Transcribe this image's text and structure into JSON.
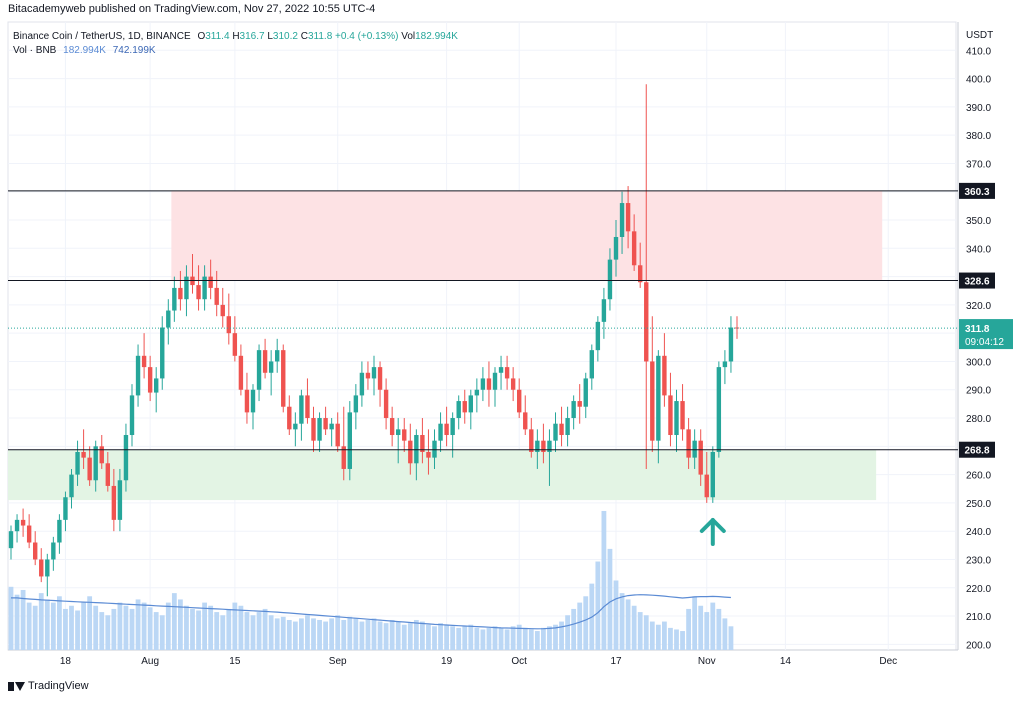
{
  "header": {
    "text": "Bitacademyweb published on TradingView.com, Nov 27, 2022 10:55 UTC-4"
  },
  "legend": {
    "symbol": "Binance Coin / TetherUS, 1D, BINANCE",
    "o_label": "O",
    "o": "311.4",
    "h_label": "H",
    "h": "316.7",
    "l_label": "L",
    "l": "310.2",
    "c_label": "C",
    "c": "311.8",
    "change": "+0.4 (+0.13%)",
    "vol_label": "Vol",
    "vol": "182.994K",
    "vol_series": "Vol · BNB",
    "vol_val1": "182.994K",
    "vol_val2": "742.199K"
  },
  "footer": {
    "brand": "TradingView"
  },
  "colors": {
    "up": "#26a69a",
    "down": "#ef5350",
    "resistance_zone": "#fde2e4",
    "support_zone": "#e3f4e4",
    "volume": "#bbd7f5",
    "volume_ma": "#5b8bd4",
    "arrow": "#26a69a"
  },
  "chart_data": {
    "type": "candlestick",
    "title": "Binance Coin / TetherUS, 1D, BINANCE",
    "y_axis_label": "USDT",
    "ylim": [
      198,
      420
    ],
    "y_ticks": [
      200,
      210,
      220,
      230,
      240,
      250,
      260,
      270,
      280,
      290,
      300,
      310,
      320,
      330,
      340,
      350,
      360,
      370,
      380,
      390,
      400,
      410
    ],
    "x_ticks": [
      {
        "label": "18",
        "index": 9
      },
      {
        "label": "Aug",
        "index": 23
      },
      {
        "label": "15",
        "index": 37
      },
      {
        "label": "Sep",
        "index": 54
      },
      {
        "label": "19",
        "index": 72
      },
      {
        "label": "Oct",
        "index": 84
      },
      {
        "label": "17",
        "index": 100
      },
      {
        "label": "Nov",
        "index": 115
      },
      {
        "label": "14",
        "index": 128
      },
      {
        "label": "Dec",
        "index": 145
      }
    ],
    "horizontal_levels": [
      {
        "value": 360.3,
        "label": "360.3"
      },
      {
        "value": 328.6,
        "label": "328.6"
      },
      {
        "value": 268.8,
        "label": "268.8"
      }
    ],
    "zones": [
      {
        "name": "resistance",
        "from": 328.6,
        "to": 360.3,
        "start_index": 27,
        "end_index": 144
      },
      {
        "name": "support",
        "from": 251,
        "to": 268.8,
        "start_index": 0,
        "end_index": 143
      }
    ],
    "last_price": {
      "value": 311.8,
      "label": "311.8",
      "countdown": "09:04:12"
    },
    "candles": [
      [
        234,
        242,
        230,
        240
      ],
      [
        240,
        246,
        236,
        244
      ],
      [
        244,
        248,
        238,
        242
      ],
      [
        242,
        246,
        234,
        236
      ],
      [
        236,
        240,
        228,
        230
      ],
      [
        230,
        234,
        222,
        224
      ],
      [
        224,
        232,
        217,
        230
      ],
      [
        230,
        238,
        226,
        236
      ],
      [
        236,
        246,
        232,
        244
      ],
      [
        244,
        254,
        240,
        252
      ],
      [
        252,
        262,
        248,
        260
      ],
      [
        260,
        272,
        256,
        268
      ],
      [
        268,
        276,
        262,
        266
      ],
      [
        266,
        270,
        256,
        258
      ],
      [
        258,
        272,
        254,
        270
      ],
      [
        270,
        274,
        262,
        264
      ],
      [
        264,
        268,
        254,
        256
      ],
      [
        256,
        262,
        240,
        244
      ],
      [
        244,
        262,
        240,
        258
      ],
      [
        258,
        278,
        254,
        274
      ],
      [
        274,
        292,
        270,
        288
      ],
      [
        288,
        306,
        284,
        302
      ],
      [
        302,
        310,
        294,
        298
      ],
      [
        298,
        302,
        286,
        289
      ],
      [
        289,
        298,
        282,
        294
      ],
      [
        294,
        316,
        290,
        312
      ],
      [
        312,
        322,
        306,
        318
      ],
      [
        318,
        330,
        314,
        326
      ],
      [
        326,
        332,
        318,
        322
      ],
      [
        322,
        334,
        316,
        330
      ],
      [
        330,
        338,
        324,
        327
      ],
      [
        327,
        334,
        318,
        322
      ],
      [
        322,
        334,
        318,
        330
      ],
      [
        330,
        336,
        322,
        326
      ],
      [
        326,
        332,
        316,
        320
      ],
      [
        320,
        326,
        312,
        316
      ],
      [
        316,
        324,
        306,
        310
      ],
      [
        310,
        316,
        300,
        302
      ],
      [
        302,
        306,
        288,
        290
      ],
      [
        290,
        296,
        278,
        282
      ],
      [
        282,
        292,
        276,
        290
      ],
      [
        290,
        306,
        286,
        304
      ],
      [
        304,
        308,
        294,
        296
      ],
      [
        296,
        304,
        288,
        300
      ],
      [
        300,
        308,
        296,
        304
      ],
      [
        304,
        306,
        282,
        284
      ],
      [
        284,
        288,
        274,
        276
      ],
      [
        276,
        282,
        270,
        278
      ],
      [
        278,
        290,
        272,
        288
      ],
      [
        288,
        294,
        278,
        280
      ],
      [
        280,
        284,
        268,
        272
      ],
      [
        272,
        282,
        268,
        280
      ],
      [
        280,
        284,
        274,
        276
      ],
      [
        276,
        280,
        270,
        278
      ],
      [
        278,
        282,
        268,
        270
      ],
      [
        270,
        284,
        258,
        262
      ],
      [
        262,
        286,
        258,
        282
      ],
      [
        282,
        292,
        276,
        288
      ],
      [
        288,
        300,
        284,
        296
      ],
      [
        296,
        300,
        290,
        294
      ],
      [
        294,
        302,
        288,
        298
      ],
      [
        298,
        300,
        284,
        290
      ],
      [
        290,
        294,
        276,
        280
      ],
      [
        280,
        284,
        270,
        274
      ],
      [
        274,
        280,
        264,
        276
      ],
      [
        276,
        280,
        268,
        272
      ],
      [
        272,
        278,
        260,
        264
      ],
      [
        264,
        276,
        258,
        274
      ],
      [
        274,
        280,
        264,
        268
      ],
      [
        268,
        276,
        260,
        266
      ],
      [
        266,
        276,
        262,
        272
      ],
      [
        272,
        282,
        268,
        278
      ],
      [
        278,
        284,
        270,
        274
      ],
      [
        274,
        282,
        266,
        280
      ],
      [
        280,
        288,
        276,
        286
      ],
      [
        286,
        290,
        278,
        282
      ],
      [
        282,
        290,
        276,
        288
      ],
      [
        288,
        294,
        282,
        290
      ],
      [
        290,
        298,
        286,
        294
      ],
      [
        294,
        300,
        284,
        290
      ],
      [
        290,
        298,
        284,
        296
      ],
      [
        296,
        302,
        290,
        298
      ],
      [
        298,
        302,
        290,
        294
      ],
      [
        294,
        298,
        286,
        290
      ],
      [
        290,
        294,
        280,
        282
      ],
      [
        282,
        288,
        274,
        276
      ],
      [
        276,
        280,
        266,
        268
      ],
      [
        268,
        276,
        262,
        272
      ],
      [
        272,
        278,
        264,
        268
      ],
      [
        268,
        276,
        256,
        272
      ],
      [
        272,
        282,
        268,
        278
      ],
      [
        278,
        284,
        270,
        274
      ],
      [
        274,
        284,
        270,
        280
      ],
      [
        280,
        288,
        276,
        286
      ],
      [
        286,
        292,
        278,
        284
      ],
      [
        284,
        296,
        280,
        294
      ],
      [
        294,
        306,
        290,
        304
      ],
      [
        304,
        316,
        300,
        314
      ],
      [
        314,
        326,
        308,
        322
      ],
      [
        322,
        340,
        318,
        336
      ],
      [
        336,
        350,
        330,
        344
      ],
      [
        344,
        360,
        338,
        356
      ],
      [
        356,
        362,
        340,
        346
      ],
      [
        346,
        352,
        332,
        334
      ],
      [
        334,
        342,
        326,
        328
      ],
      [
        328,
        398,
        262,
        300
      ],
      [
        300,
        316,
        268,
        272
      ],
      [
        272,
        304,
        264,
        302
      ],
      [
        302,
        310,
        284,
        288
      ],
      [
        288,
        296,
        270,
        274
      ],
      [
        274,
        290,
        268,
        286
      ],
      [
        286,
        292,
        272,
        276
      ],
      [
        276,
        280,
        262,
        266
      ],
      [
        266,
        276,
        262,
        272
      ],
      [
        272,
        276,
        256,
        260
      ],
      [
        260,
        268,
        250,
        252
      ],
      [
        252,
        270,
        250,
        268
      ],
      [
        268,
        300,
        266,
        298
      ],
      [
        298,
        304,
        292,
        300
      ],
      [
        300,
        316,
        296,
        312
      ],
      [
        312,
        316,
        308,
        311.8
      ]
    ],
    "volume": {
      "axis": "secondary",
      "values": [
        40,
        35,
        38,
        30,
        28,
        36,
        32,
        30,
        34,
        26,
        28,
        25,
        30,
        34,
        28,
        24,
        22,
        26,
        30,
        28,
        26,
        32,
        30,
        27,
        24,
        22,
        30,
        36,
        32,
        28,
        26,
        25,
        30,
        28,
        24,
        22,
        26,
        30,
        28,
        24,
        22,
        24,
        26,
        22,
        20,
        21,
        19,
        18,
        20,
        22,
        20,
        19,
        18,
        20,
        22,
        19,
        21,
        20,
        18,
        19,
        20,
        18,
        17,
        19,
        18,
        16,
        17,
        19,
        18,
        16,
        15,
        17,
        16,
        15,
        14,
        15,
        16,
        14,
        13,
        14,
        15,
        14,
        13,
        15,
        16,
        14,
        13,
        12,
        14,
        15,
        16,
        18,
        22,
        26,
        30,
        34,
        42,
        56,
        88,
        64,
        44,
        36,
        32,
        28,
        24,
        22,
        18,
        16,
        18,
        14,
        13,
        12,
        26,
        34,
        28,
        24,
        30,
        26,
        20,
        15
      ],
      "ma": [
        33,
        33,
        32.6,
        32.3,
        32,
        31.7,
        31.5,
        31.3,
        31.1,
        30.9,
        30.7,
        30.5,
        30.3,
        30.2,
        30,
        29.8,
        29.6,
        29.4,
        29.2,
        29,
        28.8,
        28.6,
        28.4,
        28.2,
        28,
        27.8,
        27.6,
        27.4,
        27.2,
        27,
        26.8,
        26.6,
        26.4,
        26.2,
        26,
        25.8,
        25.6,
        25.4,
        25.2,
        25,
        24.8,
        24.6,
        24.4,
        24.2,
        24,
        23.7,
        23.4,
        23.1,
        22.8,
        22.5,
        22.2,
        21.9,
        21.6,
        21.3,
        21,
        20.7,
        20.4,
        20.1,
        19.8,
        19.5,
        19.2,
        18.9,
        18.6,
        18.3,
        18,
        17.7,
        17.4,
        17.1,
        16.8,
        16.5,
        16.2,
        16,
        15.8,
        15.6,
        15.4,
        15.2,
        15,
        14.8,
        14.6,
        14.4,
        14.2,
        14,
        13.9,
        13.8,
        13.7,
        13.6,
        13.5,
        13.4,
        13.5,
        13.7,
        14,
        14.6,
        15.4,
        16.4,
        17.6,
        19,
        20.8,
        23.6,
        27.4,
        30.4,
        32.4,
        33.6,
        34.4,
        34.8,
        35,
        34.9,
        34.7,
        34.4,
        34.1,
        33.7,
        33.3,
        32.9,
        33.2,
        33.6,
        33.8,
        33.8,
        33.9,
        33.8,
        33.5,
        33.2
      ]
    }
  }
}
